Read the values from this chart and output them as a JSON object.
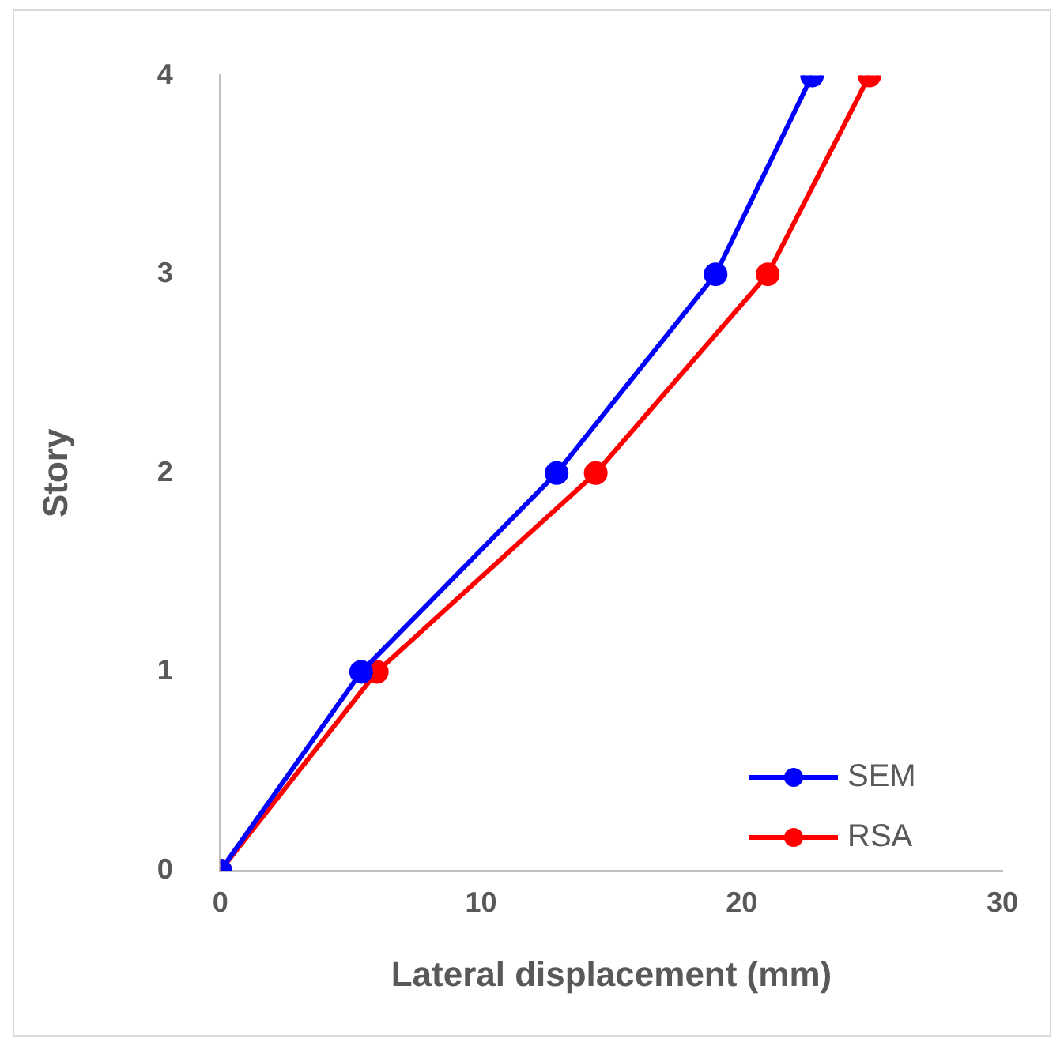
{
  "chart_data": {
    "type": "line",
    "xlabel": "Lateral displacement (mm)",
    "ylabel": "Story",
    "series": [
      {
        "name": "SEM",
        "color": "#0000ff",
        "x": [
          0,
          5.4,
          12.9,
          19.0,
          22.7
        ],
        "values": [
          0,
          1,
          2,
          3,
          4
        ]
      },
      {
        "name": "RSA",
        "color": "#ff0000",
        "x": [
          0,
          6.0,
          14.4,
          21.0,
          24.9
        ],
        "values": [
          0,
          1,
          2,
          3,
          4
        ]
      }
    ],
    "xlim": [
      0,
      30
    ],
    "xticks": [
      0,
      10,
      20,
      30
    ],
    "ylim": [
      0,
      4
    ],
    "yticks": [
      0,
      1,
      2,
      3,
      4
    ],
    "grid": false,
    "legend": "bottom right",
    "marker": "circle",
    "line_style": "solid"
  }
}
